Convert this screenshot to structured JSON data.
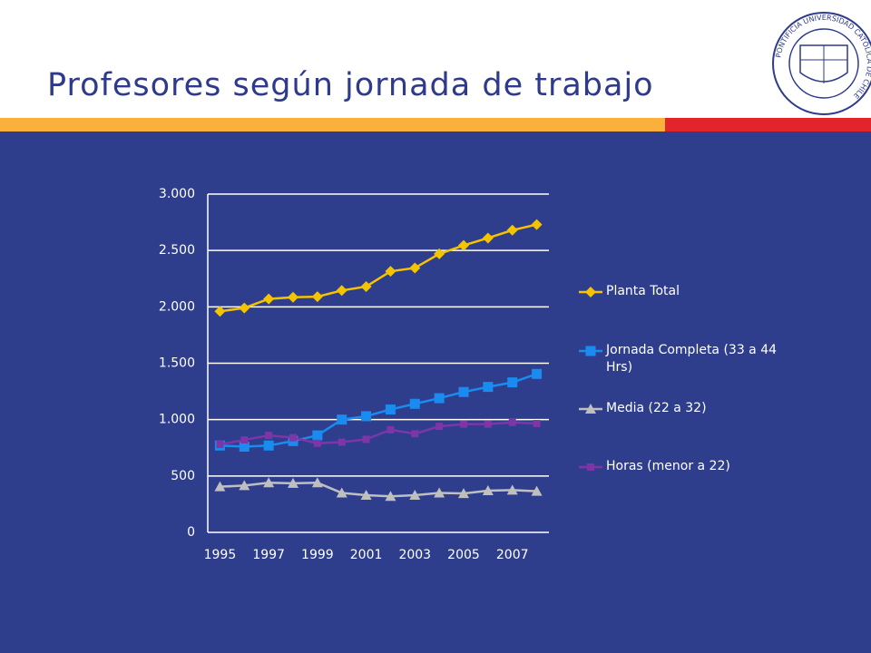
{
  "header": {
    "title": "Profesores según jornada de trabajo"
  },
  "logo_text": "PONTIFICIA UNIVERSIDAD CATÓLICA DE CHILE",
  "chart_data": {
    "type": "line",
    "categories": [
      "1995",
      null,
      "1997",
      null,
      "1999",
      null,
      "2001",
      null,
      "2003",
      null,
      "2005",
      null,
      "2007",
      null
    ],
    "series": [
      {
        "name": "Planta Total",
        "color": "#f5c400",
        "marker": "diamond",
        "values": [
          1960,
          1990,
          2070,
          2085,
          2090,
          2145,
          2180,
          2315,
          2345,
          2470,
          2545,
          2610,
          2680,
          2730
        ]
      },
      {
        "name": "Jornada Completa (33 a 44 Hrs)",
        "color": "#1a8cf0",
        "marker": "square",
        "values": [
          770,
          760,
          770,
          810,
          860,
          1000,
          1030,
          1090,
          1140,
          1190,
          1245,
          1290,
          1330,
          1405
        ]
      },
      {
        "name": "Media (22 a 32)",
        "color": "#bfbfbf",
        "marker": "triangle",
        "values": [
          405,
          415,
          440,
          435,
          440,
          350,
          330,
          320,
          330,
          350,
          345,
          370,
          375,
          365
        ]
      },
      {
        "name": "Horas (menor a 22)",
        "color": "#7d35a8",
        "marker": "small-square",
        "values": [
          780,
          820,
          860,
          840,
          790,
          800,
          825,
          910,
          875,
          940,
          960,
          960,
          975,
          965
        ]
      }
    ],
    "ylim": [
      0,
      3000
    ],
    "yticks": [
      0,
      500,
      {
        "value": 1000,
        "label": "1.000"
      },
      {
        "value": 1500,
        "label": "1.500"
      },
      {
        "value": 2000,
        "label": "2.000"
      },
      {
        "value": 2500,
        "label": "2.500"
      },
      {
        "value": 3000,
        "label": "3.000"
      }
    ],
    "grid": true,
    "legend": "right"
  }
}
